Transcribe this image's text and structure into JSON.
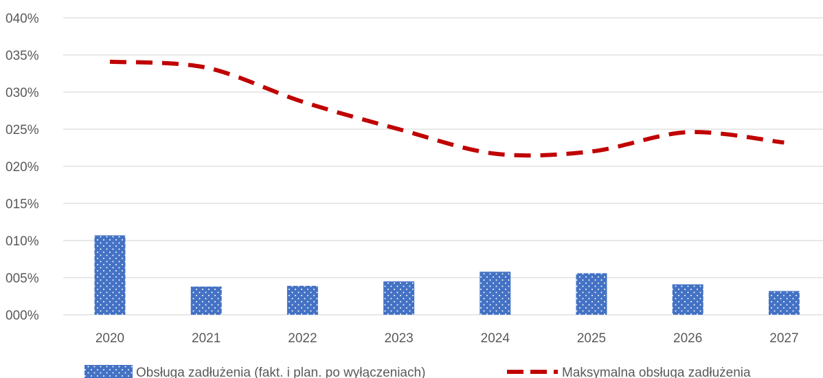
{
  "chart_data": {
    "type": "bar",
    "categories": [
      "2020",
      "2021",
      "2022",
      "2023",
      "2024",
      "2025",
      "2026",
      "2027"
    ],
    "series": [
      {
        "name": "Obsługa zadłużenia (fakt. i plan. po wyłączeniach)",
        "type": "bar",
        "pattern": "dotted",
        "color": "#4472C4",
        "values": [
          0.107,
          0.038,
          0.039,
          0.045,
          0.058,
          0.056,
          0.041,
          0.032
        ]
      },
      {
        "name": "Maksymalna obsługa zadłużenia",
        "type": "line",
        "style": "dashed-smooth",
        "color": "#C00000",
        "values": [
          0.341,
          0.333,
          0.287,
          0.25,
          0.217,
          0.22,
          0.246,
          0.232
        ]
      }
    ],
    "y_ticks": [
      "000%",
      "005%",
      "010%",
      "015%",
      "020%",
      "025%",
      "030%",
      "035%",
      "040%"
    ],
    "ylim": [
      0,
      0.4
    ],
    "grid": true,
    "legend_position": "bottom"
  }
}
